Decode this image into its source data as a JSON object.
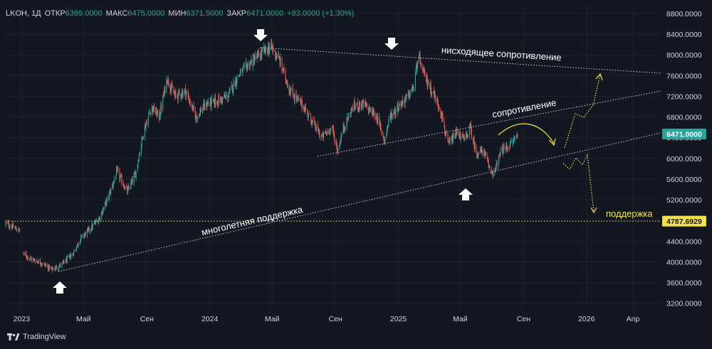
{
  "header": {
    "symbol_tf": "LKOH, 1Д",
    "open_label": "ОТКР",
    "open_value": "6399.0000",
    "high_label": "МАКС",
    "high_value": "6475.0000",
    "low_label": "МИН",
    "low_value": "6371.5000",
    "close_label": "ЗАКР",
    "close_value": "6471.0000",
    "change": "+83.0000 (+1.30%)"
  },
  "brand": {
    "label": "TradingView"
  },
  "colors": {
    "bg": "#131722",
    "up": "#26a69a",
    "down": "#ef5350",
    "support": "#f5e04a",
    "last_price_bg": "#26a69a",
    "text": "#d1d4dc"
  },
  "chart_data": {
    "type": "candlestick",
    "title": "",
    "ylim": [
      3100,
      8950
    ],
    "y_axis_ticks": [
      "8800.0000",
      "8400.0000",
      "8000.0000",
      "7600.0000",
      "7200.0000",
      "6800.0000",
      "6400.0000",
      "6000.0000",
      "5600.0000",
      "5200.0000",
      "4800.0000",
      "4400.0000",
      "4000.0000",
      "3600.0000",
      "3200.0000"
    ],
    "x_axis_ticks": [
      "2023",
      "Май",
      "Сен",
      "2024",
      "Май",
      "Сен",
      "2025",
      "Май",
      "Сен",
      "2026",
      "Апр"
    ],
    "last_price": "6471.0000",
    "support_level": "4787.6929",
    "series": [
      {
        "name": "",
        "keypoints": [
          [
            "2022-12-01",
            4750
          ],
          [
            "2022-12-28",
            4600
          ],
          [
            "2023-01-05",
            4150
          ],
          [
            "2023-01-20",
            4050
          ],
          [
            "2023-02-05",
            4000
          ],
          [
            "2023-03-01",
            3850
          ],
          [
            "2023-03-20",
            3950
          ],
          [
            "2023-04-10",
            4150
          ],
          [
            "2023-04-25",
            4450
          ],
          [
            "2023-05-15",
            4650
          ],
          [
            "2023-06-01",
            4850
          ],
          [
            "2023-06-20",
            5300
          ],
          [
            "2023-07-05",
            5750
          ],
          [
            "2023-07-25",
            5350
          ],
          [
            "2023-08-10",
            5700
          ],
          [
            "2023-08-25",
            6500
          ],
          [
            "2023-09-10",
            7000
          ],
          [
            "2023-09-25",
            6800
          ],
          [
            "2023-10-10",
            7550
          ],
          [
            "2023-10-25",
            7200
          ],
          [
            "2023-11-15",
            7300
          ],
          [
            "2023-12-05",
            6800
          ],
          [
            "2023-12-25",
            7050
          ],
          [
            "2024-01-15",
            7100
          ],
          [
            "2024-02-05",
            7200
          ],
          [
            "2024-02-25",
            7600
          ],
          [
            "2024-03-20",
            7850
          ],
          [
            "2024-04-20",
            8100
          ],
          [
            "2024-04-30",
            8150
          ],
          [
            "2024-05-15",
            7900
          ],
          [
            "2024-06-05",
            7300
          ],
          [
            "2024-07-01",
            7000
          ],
          [
            "2024-08-05",
            6400
          ],
          [
            "2024-08-25",
            6600
          ],
          [
            "2024-09-05",
            6150
          ],
          [
            "2024-09-15",
            6550
          ],
          [
            "2024-10-05",
            7000
          ],
          [
            "2024-10-25",
            7050
          ],
          [
            "2024-11-20",
            6800
          ],
          [
            "2024-12-05",
            6350
          ],
          [
            "2024-12-15",
            6800
          ],
          [
            "2025-01-05",
            7050
          ],
          [
            "2025-01-20",
            7200
          ],
          [
            "2025-02-01",
            7400
          ],
          [
            "2025-02-08",
            8000
          ],
          [
            "2025-02-20",
            7600
          ],
          [
            "2025-03-10",
            7250
          ],
          [
            "2025-03-25",
            6900
          ],
          [
            "2025-04-07",
            6250
          ],
          [
            "2025-04-25",
            6500
          ],
          [
            "2025-05-10",
            6350
          ],
          [
            "2025-05-20",
            6600
          ],
          [
            "2025-06-01",
            6100
          ],
          [
            "2025-06-15",
            6150
          ],
          [
            "2025-06-25",
            5850
          ],
          [
            "2025-07-05",
            5700
          ],
          [
            "2025-07-20",
            6150
          ],
          [
            "2025-08-05",
            6250
          ],
          [
            "2025-08-20",
            6471
          ]
        ]
      }
    ]
  },
  "annotations": {
    "multi_year_support": "многолетняя поддержка",
    "resistance": "сопротивление",
    "descending_resistance": "нисходящее сопротивление",
    "support": "поддержка"
  }
}
